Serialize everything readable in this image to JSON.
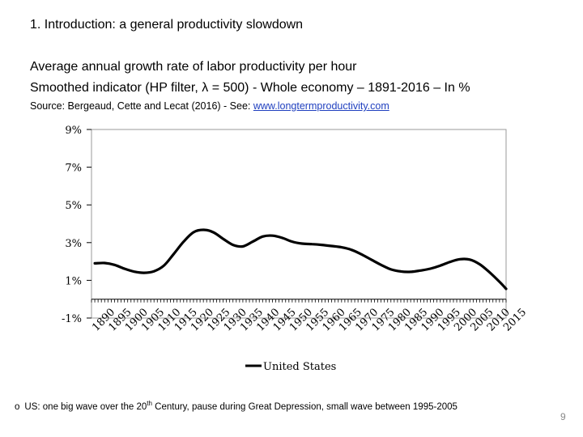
{
  "slide": {
    "title": "1. Introduction: a general productivity slowdown",
    "subtitle_line1": "Average annual growth rate of labor productivity per hour",
    "subtitle_line2": "Smoothed indicator (HP filter, λ = 500) - Whole economy – 1891-2016 – In %",
    "source_prefix": "Source: Bergeaud, Cette and Lecat (2016)  - See: ",
    "source_link": "www.longtermproductivity.com",
    "bullet_marker": "o",
    "bullet_text_1": "US: one big wave over the 20",
    "bullet_sup": "th",
    "bullet_text_2": " Century, pause during Great Depression, small wave between 1995-2005",
    "page_number": "9"
  },
  "chart_data": {
    "type": "line",
    "xlim": [
      1890,
      2016
    ],
    "ylim": [
      -1,
      9
    ],
    "y_ticks": [
      -1,
      1,
      3,
      5,
      7,
      9
    ],
    "y_tick_labels": [
      "-1%",
      "1%",
      "3%",
      "5%",
      "7%",
      "9%"
    ],
    "x_ticks": [
      1890,
      1895,
      1900,
      1905,
      1910,
      1915,
      1920,
      1925,
      1930,
      1935,
      1940,
      1945,
      1950,
      1955,
      1960,
      1965,
      1970,
      1975,
      1980,
      1985,
      1990,
      1995,
      2000,
      2005,
      2010,
      2015
    ],
    "grid": false,
    "legend": "bottom",
    "colors": {
      "line": "#000000"
    },
    "series": [
      {
        "name": "United States",
        "x": [
          1891,
          1894,
          1897,
          1900,
          1903,
          1906,
          1909,
          1912,
          1915,
          1918,
          1921,
          1924,
          1927,
          1930,
          1933,
          1936,
          1939,
          1942,
          1945,
          1948,
          1951,
          1954,
          1957,
          1960,
          1963,
          1966,
          1969,
          1972,
          1975,
          1978,
          1981,
          1984,
          1987,
          1990,
          1993,
          1996,
          1999,
          2002,
          2005,
          2008,
          2011,
          2014,
          2016
        ],
        "values": [
          1.9,
          1.92,
          1.82,
          1.62,
          1.46,
          1.4,
          1.48,
          1.78,
          2.4,
          3.05,
          3.55,
          3.68,
          3.55,
          3.2,
          2.88,
          2.8,
          3.05,
          3.32,
          3.37,
          3.25,
          3.05,
          2.95,
          2.92,
          2.88,
          2.82,
          2.75,
          2.62,
          2.38,
          2.1,
          1.82,
          1.58,
          1.47,
          1.45,
          1.52,
          1.62,
          1.78,
          1.98,
          2.12,
          2.1,
          1.85,
          1.42,
          0.92,
          0.55
        ]
      }
    ]
  }
}
